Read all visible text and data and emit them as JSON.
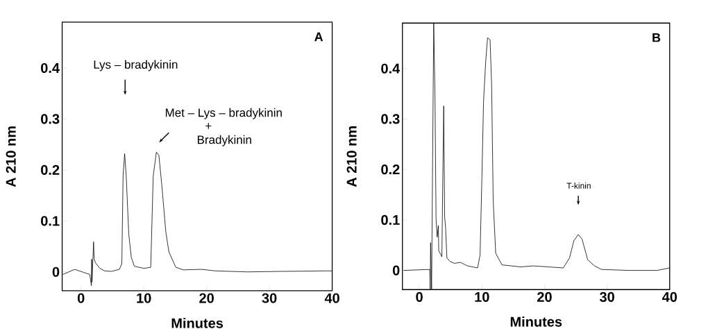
{
  "chart_data": [
    {
      "type": "line",
      "title": "A",
      "xlabel": "Minutes",
      "ylabel": "A 210 nm",
      "xlim": [
        -3,
        40
      ],
      "ylim": [
        -0.037,
        0.49
      ],
      "xticks": [
        0,
        10,
        20,
        30,
        40
      ],
      "yticks": [
        0,
        0.1,
        0.2,
        0.3,
        0.4
      ],
      "x": [
        -2.9,
        -1.0,
        1.4,
        1.65,
        1.7,
        1.75,
        2.0,
        2.1,
        2.3,
        3.0,
        3.75,
        4.85,
        6.1,
        6.5,
        6.7,
        6.95,
        7.2,
        7.6,
        8.0,
        8.5,
        10.0,
        11.1,
        11.3,
        11.5,
        12.0,
        12.4,
        12.9,
        13.5,
        14.0,
        15.1,
        16.3,
        19.2,
        21.4,
        26.5,
        32.0,
        39.0,
        40.0
      ],
      "series": [
        {
          "color": "#000000",
          "values": [
            -0.005,
            0.005,
            -0.005,
            -0.027,
            0.025,
            -0.02,
            0.059,
            0.025,
            0.018,
            0.007,
            0.002,
            0.001,
            0.005,
            0.016,
            0.188,
            0.232,
            0.188,
            0.075,
            0.029,
            0.011,
            0.007,
            0.009,
            0.098,
            0.188,
            0.235,
            0.229,
            0.166,
            0.079,
            0.039,
            0.009,
            0.004,
            0.005,
            0.002,
            0.0,
            0.001,
            0.002,
            0.002
          ]
        }
      ],
      "annotations": [
        "Lys – bradykinin",
        {
          "text": "Met – Lys – bradykinin",
          "x": 12,
          "y": 0.235
        },
        "+",
        "Bradykinin"
      ]
    },
    {
      "type": "line",
      "title": "B",
      "xlabel": "Minutes",
      "ylabel": "A 210 nm",
      "xlim": [
        -2.7,
        40
      ],
      "ylim": [
        -0.038,
        0.49
      ],
      "xticks": [
        0,
        10,
        20,
        30,
        40
      ],
      "yticks": [
        0,
        0.1,
        0.2,
        0.3,
        0.4
      ],
      "x": [
        -2.5,
        1.67,
        1.74,
        1.8,
        1.96,
        2.1,
        2.3,
        2.5,
        2.67,
        2.85,
        3.04,
        3.1,
        3.6,
        3.78,
        3.9,
        4.04,
        4.2,
        4.4,
        4.9,
        5.6,
        6.55,
        7.7,
        9.3,
        9.7,
        10.0,
        10.26,
        10.6,
        10.9,
        11.3,
        11.55,
        11.8,
        12.2,
        13.2,
        16.2,
        18.2,
        20.6,
        23.0,
        24.0,
        24.7,
        25.4,
        26.0,
        26.9,
        28.0,
        29.1,
        33.6,
        38.0,
        40.0
      ],
      "series": [
        {
          "color": "#000000",
          "values": [
            0.0,
            0.002,
            -0.037,
            0.055,
            -0.037,
            0.185,
            0.49,
            0.345,
            0.103,
            0.066,
            0.089,
            0.039,
            0.027,
            0.212,
            0.326,
            0.107,
            0.084,
            0.025,
            0.018,
            0.014,
            0.016,
            0.009,
            0.005,
            0.03,
            0.185,
            0.336,
            0.413,
            0.461,
            0.457,
            0.368,
            0.139,
            0.034,
            0.011,
            0.007,
            0.009,
            0.007,
            0.005,
            0.025,
            0.059,
            0.071,
            0.062,
            0.021,
            0.009,
            0.002,
            0.0,
            0.0,
            0.005
          ]
        }
      ],
      "annotations": [
        "T-kinin"
      ]
    }
  ]
}
